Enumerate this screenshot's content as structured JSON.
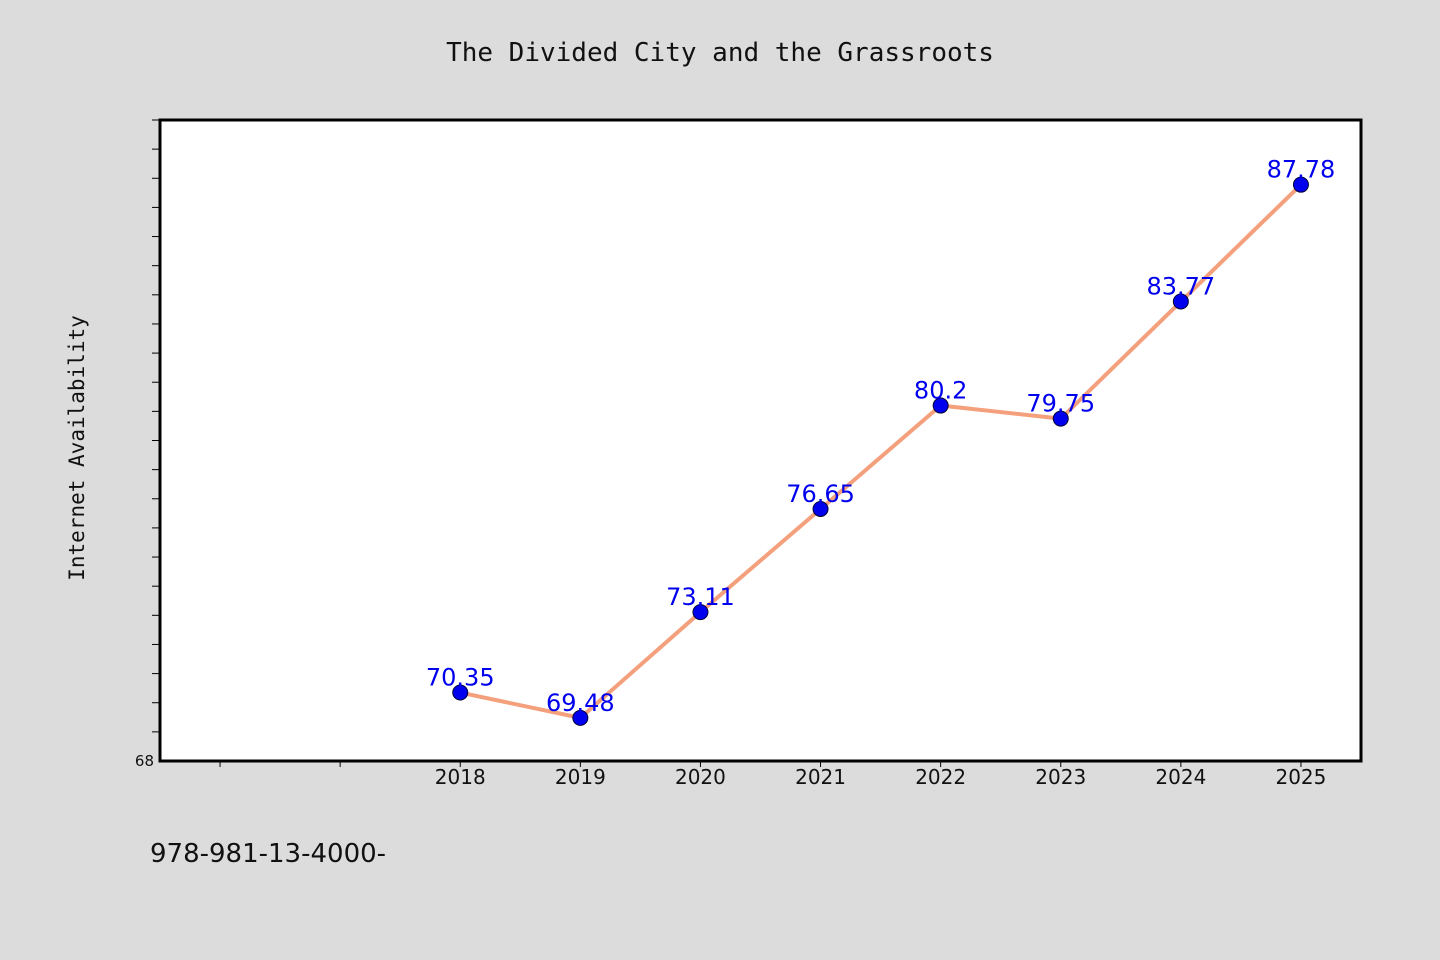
{
  "colors": {
    "background": "#dcdcdc",
    "plot_background": "#ffffff",
    "line": "#f4a07c",
    "marker": "#0000ee",
    "data_label": "#0000ee",
    "axis": "#000000"
  },
  "footer": {
    "text": "978-981-13-4000-"
  },
  "chart_data": {
    "type": "line",
    "title": "The Divided City and the Grassroots",
    "xlabel": "",
    "ylabel": "Internet Availability",
    "categories": [
      "2018",
      "2019",
      "2020",
      "2021",
      "2022",
      "2023",
      "2024",
      "2025"
    ],
    "series": [
      {
        "values": [
          70.35,
          69.48,
          73.11,
          76.65,
          80.2,
          79.75,
          83.77,
          87.78
        ],
        "labels": [
          "70.35",
          "69.48",
          "73.11",
          "76.65",
          "80.2",
          "79.75",
          "83.77",
          "87.78"
        ]
      }
    ],
    "ylim": [
      68,
      90
    ],
    "yticks_labeled": [
      "68"
    ],
    "x_domain": [
      2015.5,
      2025.5
    ],
    "grid": false,
    "legend": "none",
    "marker": "circle"
  }
}
